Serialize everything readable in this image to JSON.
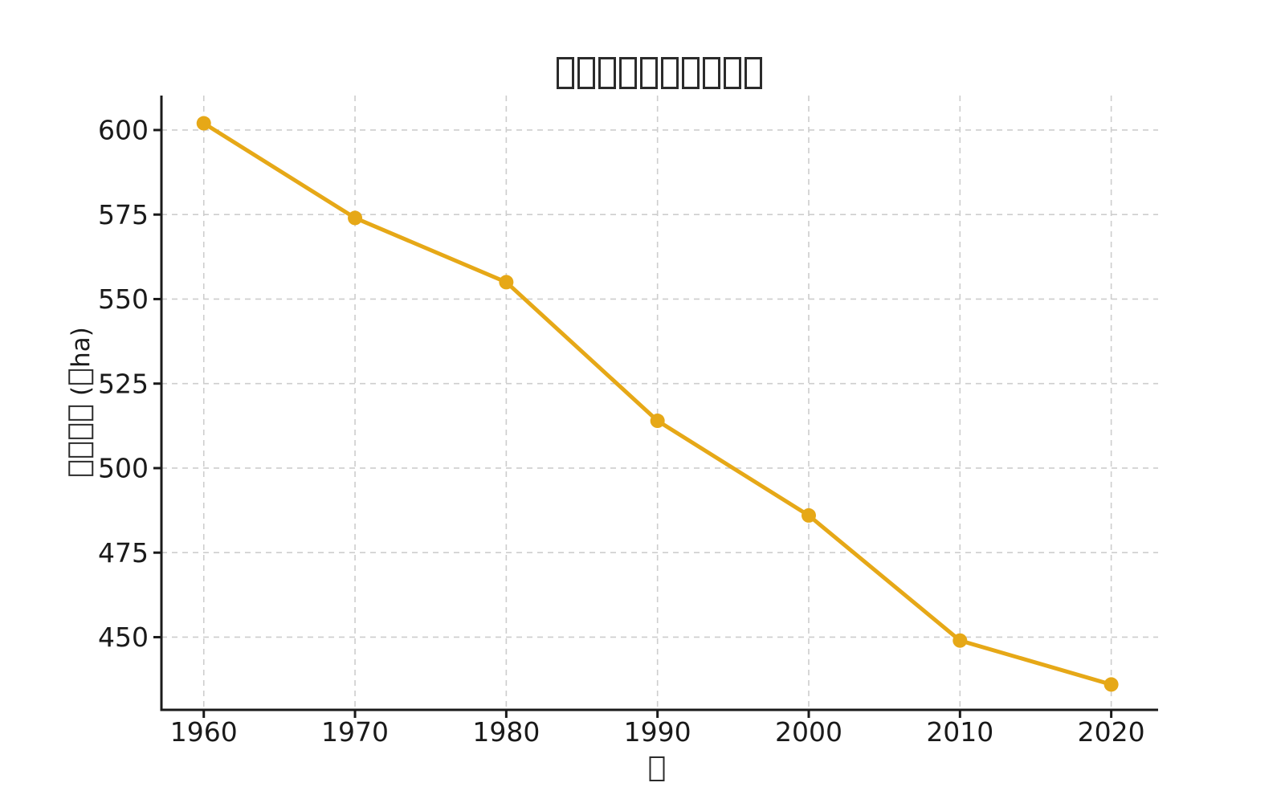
{
  "chart_data": {
    "type": "line",
    "title": "□□□□□□□□□□",
    "xlabel": "□",
    "ylabel": "□□□□ (□ha)",
    "x": [
      1960,
      1970,
      1980,
      1990,
      2000,
      2010,
      2020
    ],
    "values": [
      602,
      574,
      555,
      514,
      486,
      449,
      436
    ],
    "x_ticks": [
      "1960",
      "1970",
      "1980",
      "1990",
      "2000",
      "2010",
      "2020"
    ],
    "y_ticks": [
      "450",
      "475",
      "500",
      "525",
      "550",
      "575",
      "600"
    ],
    "y_tick_values": [
      450,
      475,
      500,
      525,
      550,
      575,
      600
    ],
    "x_tick_values": [
      1960,
      1970,
      1980,
      1990,
      2000,
      2010,
      2020
    ],
    "xlim": [
      1957.2,
      2023.1
    ],
    "ylim": [
      428.5,
      610.2
    ],
    "grid": true,
    "grid_style": "dashed",
    "legend": "none",
    "colors": {
      "line": "#e6a817",
      "marker": "#e6a817",
      "grid": "#cdcdcd",
      "axis": "#1a1a1a",
      "text": "#1a1a1a",
      "background": "#ffffff"
    }
  }
}
